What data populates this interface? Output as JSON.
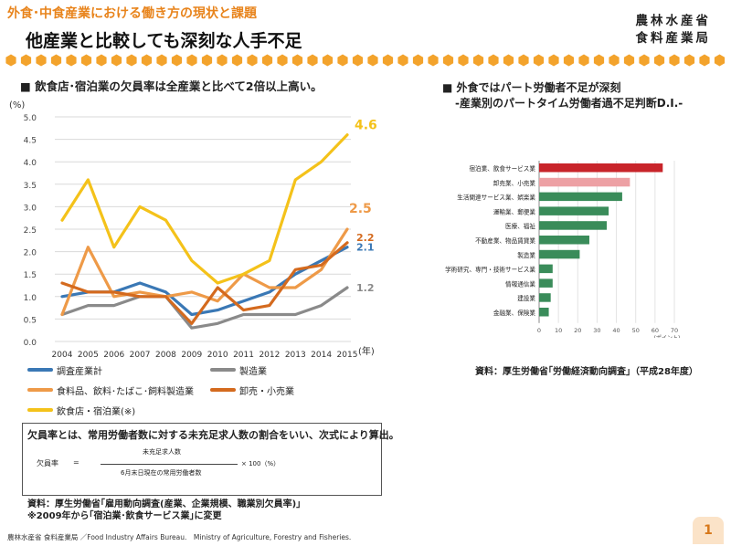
{
  "header": {
    "subtitle": "外食･中食産業における働き方の現状と課題",
    "title": "他産業と比較しても深刻な人手不足",
    "ministry_line1": "農林水産省",
    "ministry_line2": "食料産業局"
  },
  "left_section": {
    "heading": "■ 飲食店･宿泊業の欠員率は全産業と比べて2倍以上高い。"
  },
  "right_section": {
    "heading_line1": "■ 外食ではパート労働者不足が深刻",
    "heading_line2": "-産業別のパートタイム労働者過不足判断D.I.-",
    "source": "資料：厚生労働省｢労働経済動向調査｣（平成28年度）"
  },
  "formula": {
    "intro": "欠員率とは、常用労働者数に対する未充足求人数の割合をいい、次式により算出。",
    "label": "欠員率",
    "equals": "=",
    "numerator": "未充足求人数",
    "denominator": "6月末日現在の常用労働者数",
    "multiplier": "× 100（%）"
  },
  "left_source": {
    "line1": "資料：厚生労働省｢雇用動向調査(産業、企業規模、職業別欠員率)｣",
    "line2": "※2009年から｢宿泊業･飲食サービス業｣に変更"
  },
  "footer": "農林水産省 食料産業局 ／Food Industry Affairs Bureau.　Ministry of Agriculture, Forestry and Fisheries.",
  "page_number": "1",
  "chart_data": [
    {
      "type": "line",
      "title": "飲食店･宿泊業の欠員率は全産業と比べて2倍以上高い。",
      "ylabel": "(%)",
      "xlabel": "(年)",
      "ylim": [
        0,
        5
      ],
      "yticks": [
        "0.0",
        "0.5",
        "1.0",
        "1.5",
        "2.0",
        "2.5",
        "3.0",
        "3.5",
        "4.0",
        "4.5",
        "5.0"
      ],
      "x": [
        "2004",
        "2005",
        "2006",
        "2007",
        "2008",
        "2009",
        "2010",
        "2011",
        "2012",
        "2013",
        "2014",
        "2015"
      ],
      "series": [
        {
          "name": "調査産業計",
          "color": "#3a78b5",
          "values": [
            1.0,
            1.1,
            1.1,
            1.3,
            1.1,
            0.6,
            0.7,
            0.9,
            1.1,
            1.5,
            1.8,
            2.1
          ],
          "end_label": "2.1"
        },
        {
          "name": "製造業",
          "color": "#8a8a8a",
          "values": [
            0.6,
            0.8,
            0.8,
            1.0,
            1.0,
            0.3,
            0.4,
            0.6,
            0.6,
            0.6,
            0.8,
            1.2
          ],
          "end_label": "1.2"
        },
        {
          "name": "食料品、飲料･たばこ･飼料製造業",
          "color": "#ee9a48",
          "values": [
            0.6,
            2.1,
            1.0,
            1.1,
            1.0,
            1.1,
            0.9,
            1.5,
            1.2,
            1.2,
            1.6,
            2.5
          ],
          "end_label": "2.5"
        },
        {
          "name": "卸売・小売業",
          "color": "#d46a1e",
          "values": [
            1.3,
            1.1,
            1.1,
            1.0,
            1.0,
            0.4,
            1.2,
            0.7,
            0.8,
            1.6,
            1.7,
            2.2
          ],
          "end_label": "2.2"
        },
        {
          "name": "飲食店・宿泊業(※)",
          "color": "#f4c21a",
          "values": [
            2.7,
            3.6,
            2.1,
            3.0,
            2.7,
            1.8,
            1.3,
            1.5,
            1.8,
            3.6,
            4.0,
            4.6
          ],
          "end_label": "4.6"
        }
      ]
    },
    {
      "type": "bar",
      "orientation": "horizontal",
      "title": "産業別のパートタイム労働者過不足判断D.I.",
      "xlabel": "(ポイント)",
      "xlim": [
        0,
        70
      ],
      "xticks": [
        "0",
        "10",
        "20",
        "30",
        "40",
        "50",
        "60",
        "70"
      ],
      "categories": [
        "宿泊業、飲食サービス業",
        "卸売業、小売業",
        "生活関連サービス業、娯楽業",
        "運輸業、郵便業",
        "医療、福祉",
        "不動産業、物品賃貸業",
        "製造業",
        "学術研究、専門・技術サービス業",
        "情報通信業",
        "建設業",
        "金融業、保険業"
      ],
      "values": [
        64,
        47,
        43,
        36,
        35,
        26,
        21,
        7,
        7,
        6,
        5
      ],
      "colors": [
        "#c8242a",
        "#eda0a4",
        "#3a8c5a",
        "#3a8c5a",
        "#3a8c5a",
        "#3a8c5a",
        "#3a8c5a",
        "#3a8c5a",
        "#3a8c5a",
        "#3a8c5a",
        "#3a8c5a"
      ]
    }
  ]
}
